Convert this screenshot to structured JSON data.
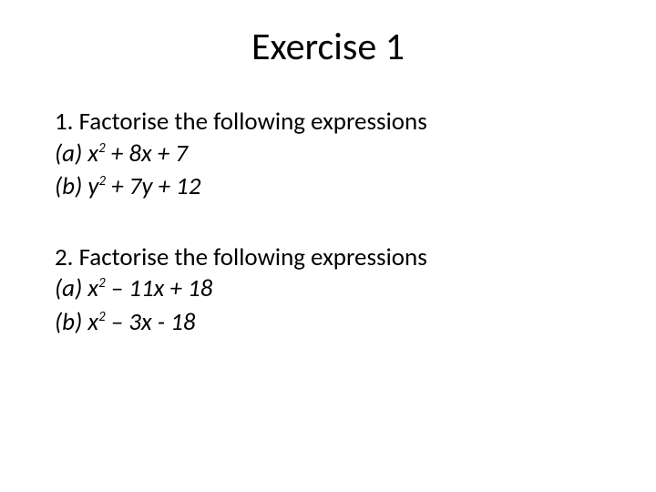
{
  "title": "Exercise 1",
  "q1": {
    "prompt": "1.  Factorise the following expressions",
    "a_label": "(a)",
    "a_expr_pre": "x",
    "a_sup": "2",
    "a_expr_post": " + 8x + 7",
    "b_label": "(b)",
    "b_expr_pre": "y",
    "b_sup": "2",
    "b_expr_post": " + 7y + 12"
  },
  "q2": {
    "prompt": "2.  Factorise the following expressions",
    "a_label": "(a)",
    "a_expr_pre": "x",
    "a_sup": "2",
    "a_expr_post": " – 11x + 18",
    "b_label": "(b)",
    "b_expr_pre": "x",
    "b_sup": "2",
    "b_expr_post": " – 3x - 18"
  },
  "style": {
    "background": "#ffffff",
    "text_color": "#000000",
    "title_fontsize": 42,
    "body_fontsize": 27,
    "font_family": "Calibri"
  }
}
